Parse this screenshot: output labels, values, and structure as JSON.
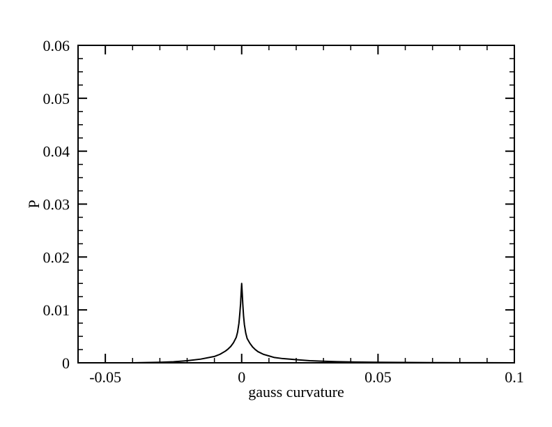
{
  "chart_data": {
    "type": "line",
    "title": "",
    "xlabel": "gauss curvature",
    "ylabel": "P",
    "xlim": [
      -0.06,
      0.1
    ],
    "ylim": [
      0,
      0.06
    ],
    "xticks": [
      {
        "value": -0.05,
        "label": "-0.05"
      },
      {
        "value": 0,
        "label": "0"
      },
      {
        "value": 0.05,
        "label": "0.05"
      },
      {
        "value": 0.1,
        "label": "0.1"
      }
    ],
    "yticks": [
      {
        "value": 0,
        "label": "0"
      },
      {
        "value": 0.01,
        "label": "0.01"
      },
      {
        "value": 0.02,
        "label": "0.02"
      },
      {
        "value": 0.03,
        "label": "0.03"
      },
      {
        "value": 0.04,
        "label": "0.04"
      },
      {
        "value": 0.05,
        "label": "0.05"
      },
      {
        "value": 0.06,
        "label": "0.06"
      }
    ],
    "grid": false,
    "series": [
      {
        "color": "#000000",
        "points": [
          [
            -0.05,
            0.0
          ],
          [
            -0.04,
            0.0
          ],
          [
            -0.035,
            5e-05
          ],
          [
            -0.03,
            0.0001
          ],
          [
            -0.025,
            0.0002
          ],
          [
            -0.02,
            0.0004
          ],
          [
            -0.015,
            0.0007
          ],
          [
            -0.01,
            0.0012
          ],
          [
            -0.008,
            0.0016
          ],
          [
            -0.006,
            0.0022
          ],
          [
            -0.005,
            0.0026
          ],
          [
            -0.004,
            0.0031
          ],
          [
            -0.003,
            0.0038
          ],
          [
            -0.002,
            0.0048
          ],
          [
            -0.0015,
            0.0058
          ],
          [
            -0.001,
            0.0075
          ],
          [
            -0.0007,
            0.0092
          ],
          [
            -0.0004,
            0.0112
          ],
          [
            -0.0002,
            0.0132
          ],
          [
            0.0,
            0.015
          ],
          [
            0.0002,
            0.0132
          ],
          [
            0.0004,
            0.0112
          ],
          [
            0.0007,
            0.0088
          ],
          [
            0.001,
            0.0072
          ],
          [
            0.0015,
            0.0056
          ],
          [
            0.002,
            0.0046
          ],
          [
            0.003,
            0.0037
          ],
          [
            0.004,
            0.003
          ],
          [
            0.005,
            0.0025
          ],
          [
            0.006,
            0.0021
          ],
          [
            0.008,
            0.0016
          ],
          [
            0.01,
            0.0013
          ],
          [
            0.012,
            0.001
          ],
          [
            0.015,
            0.0008
          ],
          [
            0.02,
            0.0006
          ],
          [
            0.025,
            0.0004
          ],
          [
            0.03,
            0.0003
          ],
          [
            0.035,
            0.00022
          ],
          [
            0.04,
            0.00016
          ],
          [
            0.05,
            0.0001
          ],
          [
            0.06,
            6e-05
          ],
          [
            0.07,
            4e-05
          ],
          [
            0.08,
            2e-05
          ],
          [
            0.09,
            1e-05
          ],
          [
            0.1,
            0.0
          ]
        ]
      }
    ]
  }
}
